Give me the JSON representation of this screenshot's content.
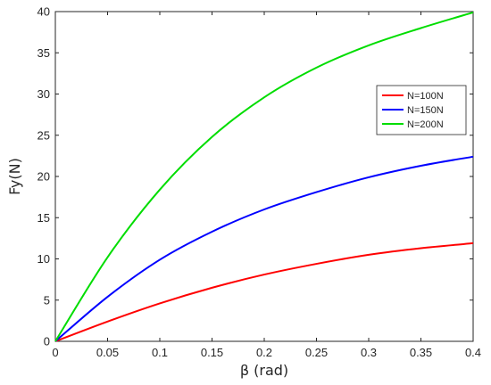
{
  "chart_data": {
    "type": "line",
    "title": "",
    "xlabel": "β (rad)",
    "ylabel": "Fy(N)",
    "xlim": [
      0,
      0.4
    ],
    "ylim": [
      0,
      40
    ],
    "xticks": [
      0,
      0.05,
      0.1,
      0.15,
      0.2,
      0.25,
      0.3,
      0.35,
      0.4
    ],
    "xtick_labels": [
      "0",
      "0.05",
      "0.1",
      "0.15",
      "0.2",
      "0.25",
      "0.3",
      "0.35",
      "0.4"
    ],
    "yticks": [
      0,
      5,
      10,
      15,
      20,
      25,
      30,
      35,
      40
    ],
    "ytick_labels": [
      "0",
      "5",
      "10",
      "15",
      "20",
      "25",
      "30",
      "35",
      "40"
    ],
    "grid": false,
    "legend_position": "top-right",
    "x": [
      0,
      0.05,
      0.1,
      0.15,
      0.2,
      0.25,
      0.3,
      0.35,
      0.4
    ],
    "series": [
      {
        "name": "N=100N",
        "color": "#ff0000",
        "values": [
          0,
          2.4,
          4.6,
          6.5,
          8.1,
          9.4,
          10.5,
          11.3,
          11.9
        ]
      },
      {
        "name": "N=150N",
        "color": "#0000ff",
        "values": [
          0,
          5.4,
          9.9,
          13.3,
          16.0,
          18.1,
          19.9,
          21.3,
          22.4
        ]
      },
      {
        "name": "N=200N",
        "color": "#00dd00",
        "values": [
          0,
          10.2,
          18.4,
          24.8,
          29.6,
          33.2,
          35.9,
          38.0,
          39.9
        ]
      }
    ]
  }
}
